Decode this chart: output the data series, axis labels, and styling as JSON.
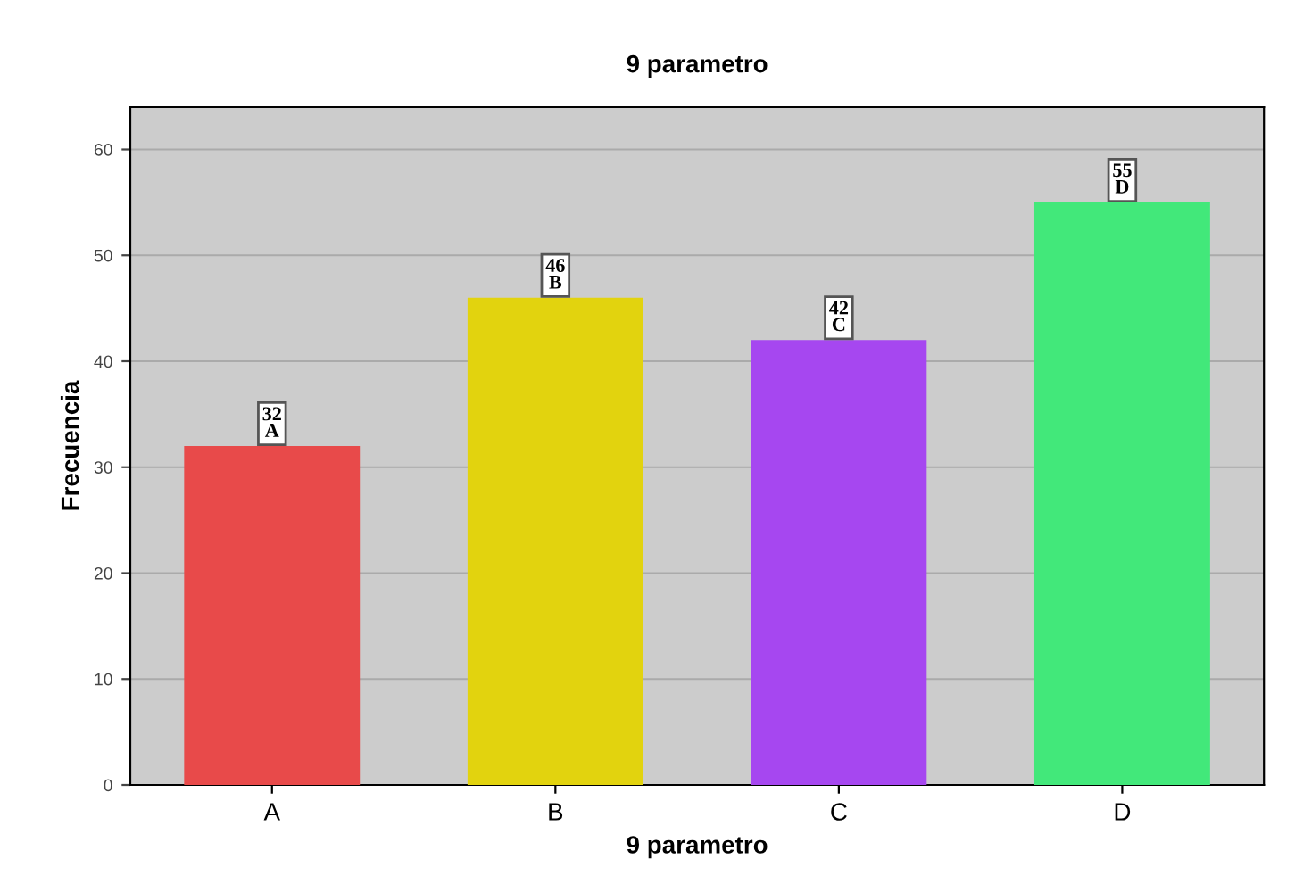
{
  "chart_data": {
    "type": "bar",
    "title": "9 parametro",
    "xlabel": "9 parametro",
    "ylabel": "Frecuencia",
    "categories": [
      "A",
      "B",
      "C",
      "D"
    ],
    "values": [
      32,
      46,
      42,
      55
    ],
    "colors": [
      "#e84a4a",
      "#e2d30e",
      "#a647f0",
      "#42e87a"
    ],
    "value_labels": [
      "32\nA",
      "46\nB",
      "42\nC",
      "55\nD"
    ],
    "ylim": [
      0,
      64
    ],
    "yticks": [
      0,
      10,
      20,
      30,
      40,
      50,
      60
    ],
    "grid": "y",
    "legend": false
  }
}
